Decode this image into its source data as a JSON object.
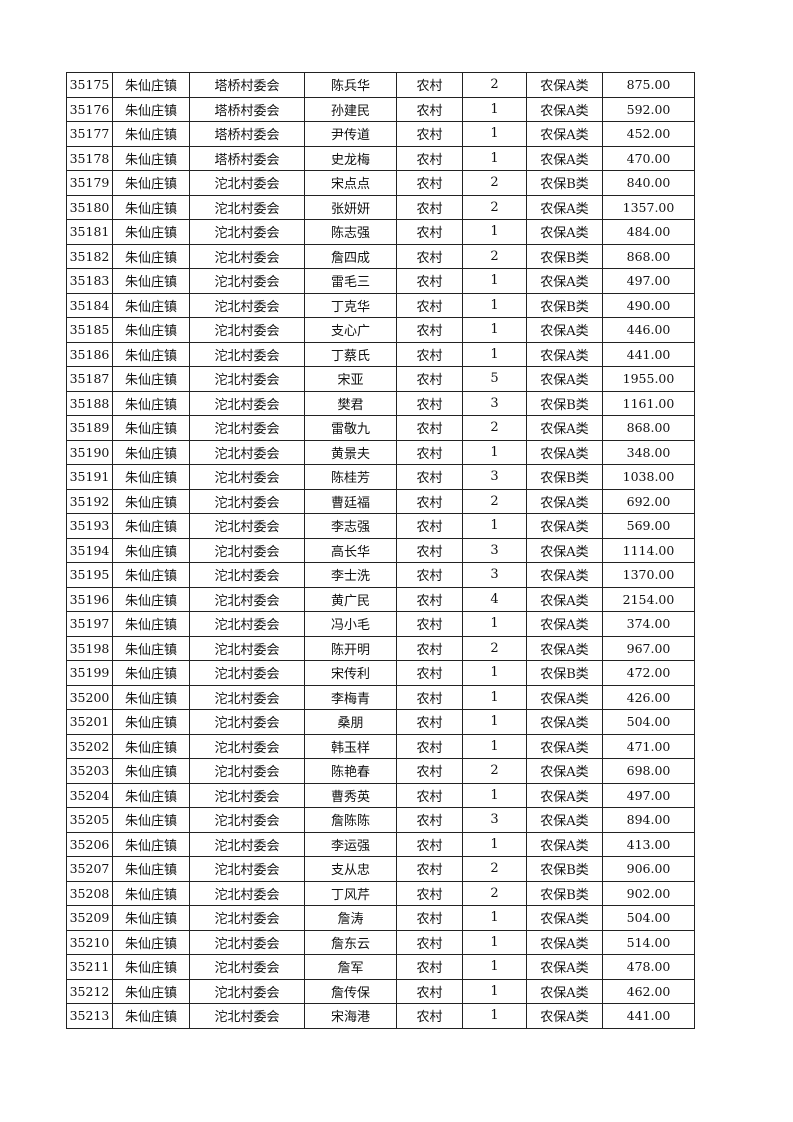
{
  "table": {
    "columns": [
      "id",
      "town",
      "village",
      "name",
      "type",
      "count",
      "category",
      "amount"
    ],
    "rows": [
      [
        "35175",
        "朱仙庄镇",
        "塔桥村委会",
        "陈兵华",
        "农村",
        "2",
        "农保A类",
        "875.00"
      ],
      [
        "35176",
        "朱仙庄镇",
        "塔桥村委会",
        "孙建民",
        "农村",
        "1",
        "农保A类",
        "592.00"
      ],
      [
        "35177",
        "朱仙庄镇",
        "塔桥村委会",
        "尹传道",
        "农村",
        "1",
        "农保A类",
        "452.00"
      ],
      [
        "35178",
        "朱仙庄镇",
        "塔桥村委会",
        "史龙梅",
        "农村",
        "1",
        "农保A类",
        "470.00"
      ],
      [
        "35179",
        "朱仙庄镇",
        "沱北村委会",
        "宋点点",
        "农村",
        "2",
        "农保B类",
        "840.00"
      ],
      [
        "35180",
        "朱仙庄镇",
        "沱北村委会",
        "张妍妍",
        "农村",
        "2",
        "农保A类",
        "1357.00"
      ],
      [
        "35181",
        "朱仙庄镇",
        "沱北村委会",
        "陈志强",
        "农村",
        "1",
        "农保A类",
        "484.00"
      ],
      [
        "35182",
        "朱仙庄镇",
        "沱北村委会",
        "詹四成",
        "农村",
        "2",
        "农保B类",
        "868.00"
      ],
      [
        "35183",
        "朱仙庄镇",
        "沱北村委会",
        "雷毛三",
        "农村",
        "1",
        "农保A类",
        "497.00"
      ],
      [
        "35184",
        "朱仙庄镇",
        "沱北村委会",
        "丁克华",
        "农村",
        "1",
        "农保B类",
        "490.00"
      ],
      [
        "35185",
        "朱仙庄镇",
        "沱北村委会",
        "支心广",
        "农村",
        "1",
        "农保A类",
        "446.00"
      ],
      [
        "35186",
        "朱仙庄镇",
        "沱北村委会",
        "丁蔡氏",
        "农村",
        "1",
        "农保A类",
        "441.00"
      ],
      [
        "35187",
        "朱仙庄镇",
        "沱北村委会",
        "宋亚",
        "农村",
        "5",
        "农保A类",
        "1955.00"
      ],
      [
        "35188",
        "朱仙庄镇",
        "沱北村委会",
        "樊君",
        "农村",
        "3",
        "农保B类",
        "1161.00"
      ],
      [
        "35189",
        "朱仙庄镇",
        "沱北村委会",
        "雷敬九",
        "农村",
        "2",
        "农保A类",
        "868.00"
      ],
      [
        "35190",
        "朱仙庄镇",
        "沱北村委会",
        "黄景夫",
        "农村",
        "1",
        "农保A类",
        "348.00"
      ],
      [
        "35191",
        "朱仙庄镇",
        "沱北村委会",
        "陈桂芳",
        "农村",
        "3",
        "农保B类",
        "1038.00"
      ],
      [
        "35192",
        "朱仙庄镇",
        "沱北村委会",
        "曹廷福",
        "农村",
        "2",
        "农保A类",
        "692.00"
      ],
      [
        "35193",
        "朱仙庄镇",
        "沱北村委会",
        "李志强",
        "农村",
        "1",
        "农保A类",
        "569.00"
      ],
      [
        "35194",
        "朱仙庄镇",
        "沱北村委会",
        "高长华",
        "农村",
        "3",
        "农保A类",
        "1114.00"
      ],
      [
        "35195",
        "朱仙庄镇",
        "沱北村委会",
        "李士洗",
        "农村",
        "3",
        "农保A类",
        "1370.00"
      ],
      [
        "35196",
        "朱仙庄镇",
        "沱北村委会",
        "黄广民",
        "农村",
        "4",
        "农保A类",
        "2154.00"
      ],
      [
        "35197",
        "朱仙庄镇",
        "沱北村委会",
        "冯小毛",
        "农村",
        "1",
        "农保A类",
        "374.00"
      ],
      [
        "35198",
        "朱仙庄镇",
        "沱北村委会",
        "陈开明",
        "农村",
        "2",
        "农保A类",
        "967.00"
      ],
      [
        "35199",
        "朱仙庄镇",
        "沱北村委会",
        "宋传利",
        "农村",
        "1",
        "农保B类",
        "472.00"
      ],
      [
        "35200",
        "朱仙庄镇",
        "沱北村委会",
        "李梅青",
        "农村",
        "1",
        "农保A类",
        "426.00"
      ],
      [
        "35201",
        "朱仙庄镇",
        "沱北村委会",
        "桑朋",
        "农村",
        "1",
        "农保A类",
        "504.00"
      ],
      [
        "35202",
        "朱仙庄镇",
        "沱北村委会",
        "韩玉样",
        "农村",
        "1",
        "农保A类",
        "471.00"
      ],
      [
        "35203",
        "朱仙庄镇",
        "沱北村委会",
        "陈艳春",
        "农村",
        "2",
        "农保A类",
        "698.00"
      ],
      [
        "35204",
        "朱仙庄镇",
        "沱北村委会",
        "曹秀英",
        "农村",
        "1",
        "农保A类",
        "497.00"
      ],
      [
        "35205",
        "朱仙庄镇",
        "沱北村委会",
        "詹陈陈",
        "农村",
        "3",
        "农保A类",
        "894.00"
      ],
      [
        "35206",
        "朱仙庄镇",
        "沱北村委会",
        "李运强",
        "农村",
        "1",
        "农保A类",
        "413.00"
      ],
      [
        "35207",
        "朱仙庄镇",
        "沱北村委会",
        "支从忠",
        "农村",
        "2",
        "农保B类",
        "906.00"
      ],
      [
        "35208",
        "朱仙庄镇",
        "沱北村委会",
        "丁风芹",
        "农村",
        "2",
        "农保B类",
        "902.00"
      ],
      [
        "35209",
        "朱仙庄镇",
        "沱北村委会",
        "詹涛",
        "农村",
        "1",
        "农保A类",
        "504.00"
      ],
      [
        "35210",
        "朱仙庄镇",
        "沱北村委会",
        "詹东云",
        "农村",
        "1",
        "农保A类",
        "514.00"
      ],
      [
        "35211",
        "朱仙庄镇",
        "沱北村委会",
        "詹军",
        "农村",
        "1",
        "农保A类",
        "478.00"
      ],
      [
        "35212",
        "朱仙庄镇",
        "沱北村委会",
        "詹传保",
        "农村",
        "1",
        "农保A类",
        "462.00"
      ],
      [
        "35213",
        "朱仙庄镇",
        "沱北村委会",
        "宋海港",
        "农村",
        "1",
        "农保A类",
        "441.00"
      ]
    ]
  }
}
